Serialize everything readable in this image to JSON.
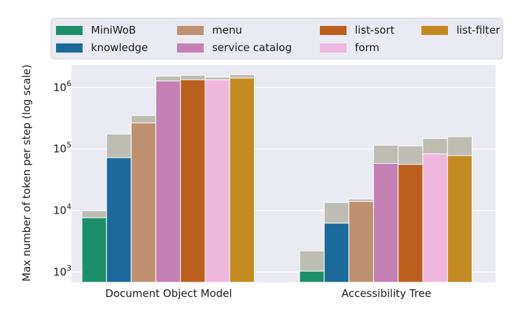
{
  "chart_data": {
    "type": "bar",
    "stacked_overlay": true,
    "log_scale_y": true,
    "ylabel": "Max number of token per step (log scale)",
    "xlabel": "",
    "ylim": [
      680,
      2300000
    ],
    "y_ticks": [
      {
        "value": 1000,
        "base": "10",
        "exp": "3"
      },
      {
        "value": 10000,
        "base": "10",
        "exp": "4"
      },
      {
        "value": 100000,
        "base": "10",
        "exp": "5"
      },
      {
        "value": 1000000,
        "base": "10",
        "exp": "6"
      }
    ],
    "grid": true,
    "legend_position": "top",
    "categories": [
      "Document Object Model",
      "Accessibility Tree"
    ],
    "overlay_color": "#bdbdb4",
    "series": [
      {
        "name": "MiniWoB",
        "color": "#1b8f6a",
        "values": [
          7600,
          1030
        ],
        "max_values": [
          9900,
          2200
        ]
      },
      {
        "name": "knowledge",
        "color": "#1b6a9b",
        "values": [
          72000,
          6200
        ],
        "max_values": [
          175000,
          13500
        ]
      },
      {
        "name": "menu",
        "color": "#bf9170",
        "values": [
          265000,
          14000
        ],
        "max_values": [
          350000,
          15300
        ]
      },
      {
        "name": "service catalog",
        "color": "#c47fb5",
        "values": [
          1270000,
          58000
        ],
        "max_values": [
          1520000,
          115000
        ]
      },
      {
        "name": "list-sort",
        "color": "#bb5f1e",
        "values": [
          1330000,
          56000
        ],
        "max_values": [
          1580000,
          112000
        ]
      },
      {
        "name": "form",
        "color": "#efb7dd",
        "values": [
          1330000,
          83000
        ],
        "max_values": [
          1470000,
          148000
        ]
      },
      {
        "name": "list-filter",
        "color": "#c48a22",
        "values": [
          1420000,
          78000
        ],
        "max_values": [
          1620000,
          158000
        ]
      }
    ]
  }
}
